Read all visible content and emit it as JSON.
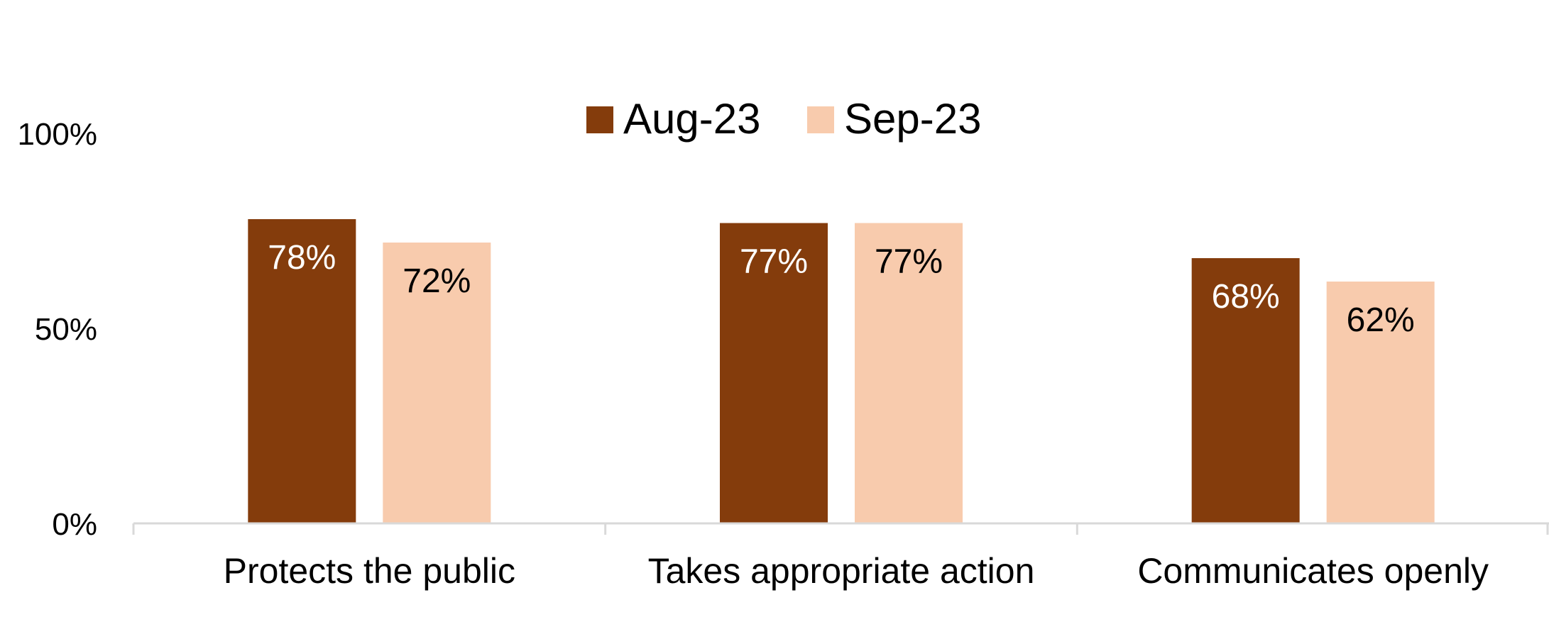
{
  "chart_data": {
    "type": "bar",
    "categories": [
      "Protects the public",
      "Takes appropriate action",
      "Communicates openly"
    ],
    "series": [
      {
        "name": "Aug-23",
        "values": [
          78,
          77,
          68
        ],
        "color": "#843C0C",
        "label_color": "#FFFFFF"
      },
      {
        "name": "Sep-23",
        "values": [
          72,
          77,
          62
        ],
        "color": "#F8CBAD",
        "label_color": "#000000"
      }
    ],
    "data_labels": [
      [
        "78%",
        "77%",
        "68%"
      ],
      [
        "72%",
        "77%",
        "62%"
      ]
    ],
    "y_ticks": [
      "0%",
      "50%",
      "100%"
    ],
    "y_tick_values": [
      0,
      50,
      100
    ],
    "ylim": [
      0,
      100
    ],
    "grid": false,
    "legend_position": "top",
    "axis_color": "#D9D9D9"
  }
}
